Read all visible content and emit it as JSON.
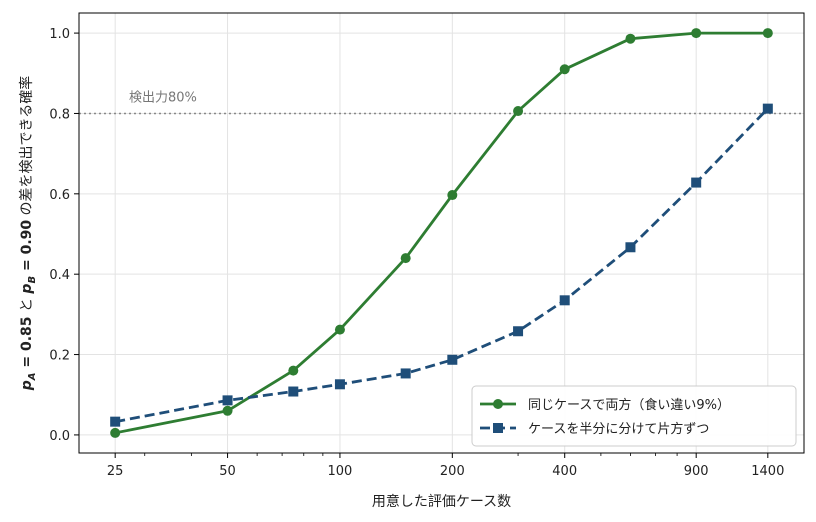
{
  "chart_data": {
    "type": "line",
    "xscale": "log",
    "xticks": [
      25,
      50,
      100,
      200,
      400,
      900,
      1400
    ],
    "xlim": [
      20,
      1750
    ],
    "ylim": [
      -0.045,
      1.05
    ],
    "yticks": [
      0.0,
      0.2,
      0.4,
      0.6,
      0.8,
      1.0
    ],
    "ytick_labels": [
      "0.0",
      "0.2",
      "0.4",
      "0.6",
      "0.8",
      "1.0"
    ],
    "xlabel": "用意した評価ケース数",
    "ylabel": {
      "pA": "p",
      "pA_sub": "A",
      "pA_eq": " = 0.85",
      "and": " と ",
      "pB": "p",
      "pB_sub": "B",
      "pB_eq": " = 0.90",
      "rest": " の差を検出できる確率"
    },
    "grid": true,
    "reference_line": {
      "y": 0.8,
      "label": "検出力80%",
      "color": "#888888"
    },
    "legend_position": "bottom-right",
    "series": [
      {
        "name": "同じケースで両方（食い違い9%）",
        "color": "#2e7d32",
        "marker": "circle",
        "linestyle": "solid",
        "x": [
          25,
          50,
          75,
          100,
          150,
          200,
          300,
          400,
          600,
          900,
          1400
        ],
        "y": [
          0.005,
          0.06,
          0.16,
          0.262,
          0.44,
          0.597,
          0.806,
          0.91,
          0.986,
          1.0,
          1.0
        ]
      },
      {
        "name": "ケースを半分に分けて片方ずつ",
        "color": "#1f4e79",
        "marker": "square",
        "linestyle": "dashed",
        "x": [
          25,
          50,
          75,
          100,
          150,
          200,
          300,
          400,
          600,
          900,
          1400
        ],
        "y": [
          0.033,
          0.086,
          0.108,
          0.126,
          0.153,
          0.187,
          0.258,
          0.335,
          0.467,
          0.628,
          0.812
        ]
      }
    ]
  }
}
